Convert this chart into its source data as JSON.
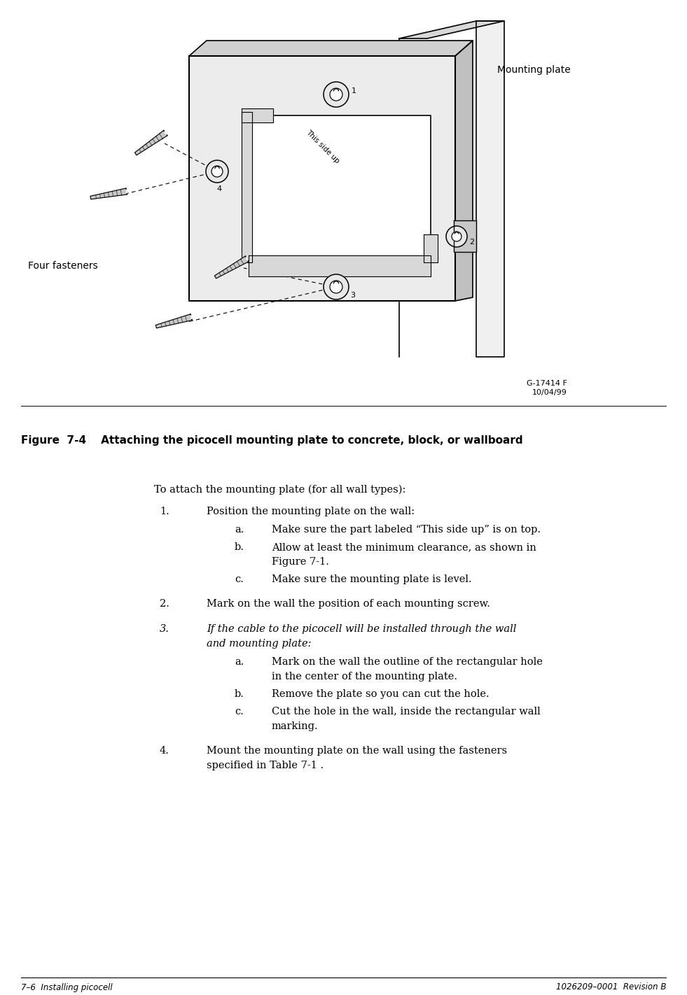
{
  "bg_color": "#ffffff",
  "fig_width": 9.81,
  "fig_height": 14.22,
  "figure_label_bold": "Figure  7-4    Attaching the picocell mounting plate to concrete, block, or wallboard",
  "footer_left": "7–6  Installing picocell",
  "footer_right": "1026209–0001  Revision B",
  "diagram_label_mounting_plate": "Mounting plate",
  "diagram_label_four_fasteners": "Four fasteners",
  "diagram_label_this_side_up": "This side up",
  "intro_text": "To attach the mounting plate (for all wall types):",
  "steps": [
    {
      "num": "1.",
      "text": "Position the mounting plate on the wall:",
      "italic": false,
      "subs": [
        {
          "letter": "a.",
          "text": "Make sure the part labeled “This side up” is on top."
        },
        {
          "letter": "b.",
          "text": "Allow at least the minimum clearance, as shown in\nFigure 7-1."
        },
        {
          "letter": "c.",
          "text": "Make sure the mounting plate is level."
        }
      ]
    },
    {
      "num": "2.",
      "text": "Mark on the wall the position of each mounting screw.",
      "italic": false,
      "subs": []
    },
    {
      "num": "3.",
      "text": "If the cable to the picocell will be installed through the wall\nand mounting plate:",
      "italic": true,
      "subs": [
        {
          "letter": "a.",
          "text": "Mark on the wall the outline of the rectangular hole\nin the center of the mounting plate."
        },
        {
          "letter": "b.",
          "text": "Remove the plate so you can cut the hole."
        },
        {
          "letter": "c.",
          "text": "Cut the hole in the wall, inside the rectangular wall\nmarking."
        }
      ]
    },
    {
      "num": "4.",
      "text": "Mount the mounting plate on the wall using the fasteners\nspecified in Table 7-1 .",
      "italic": false,
      "subs": []
    }
  ],
  "fig_id_text": "G-17414 F\n10/04/99"
}
